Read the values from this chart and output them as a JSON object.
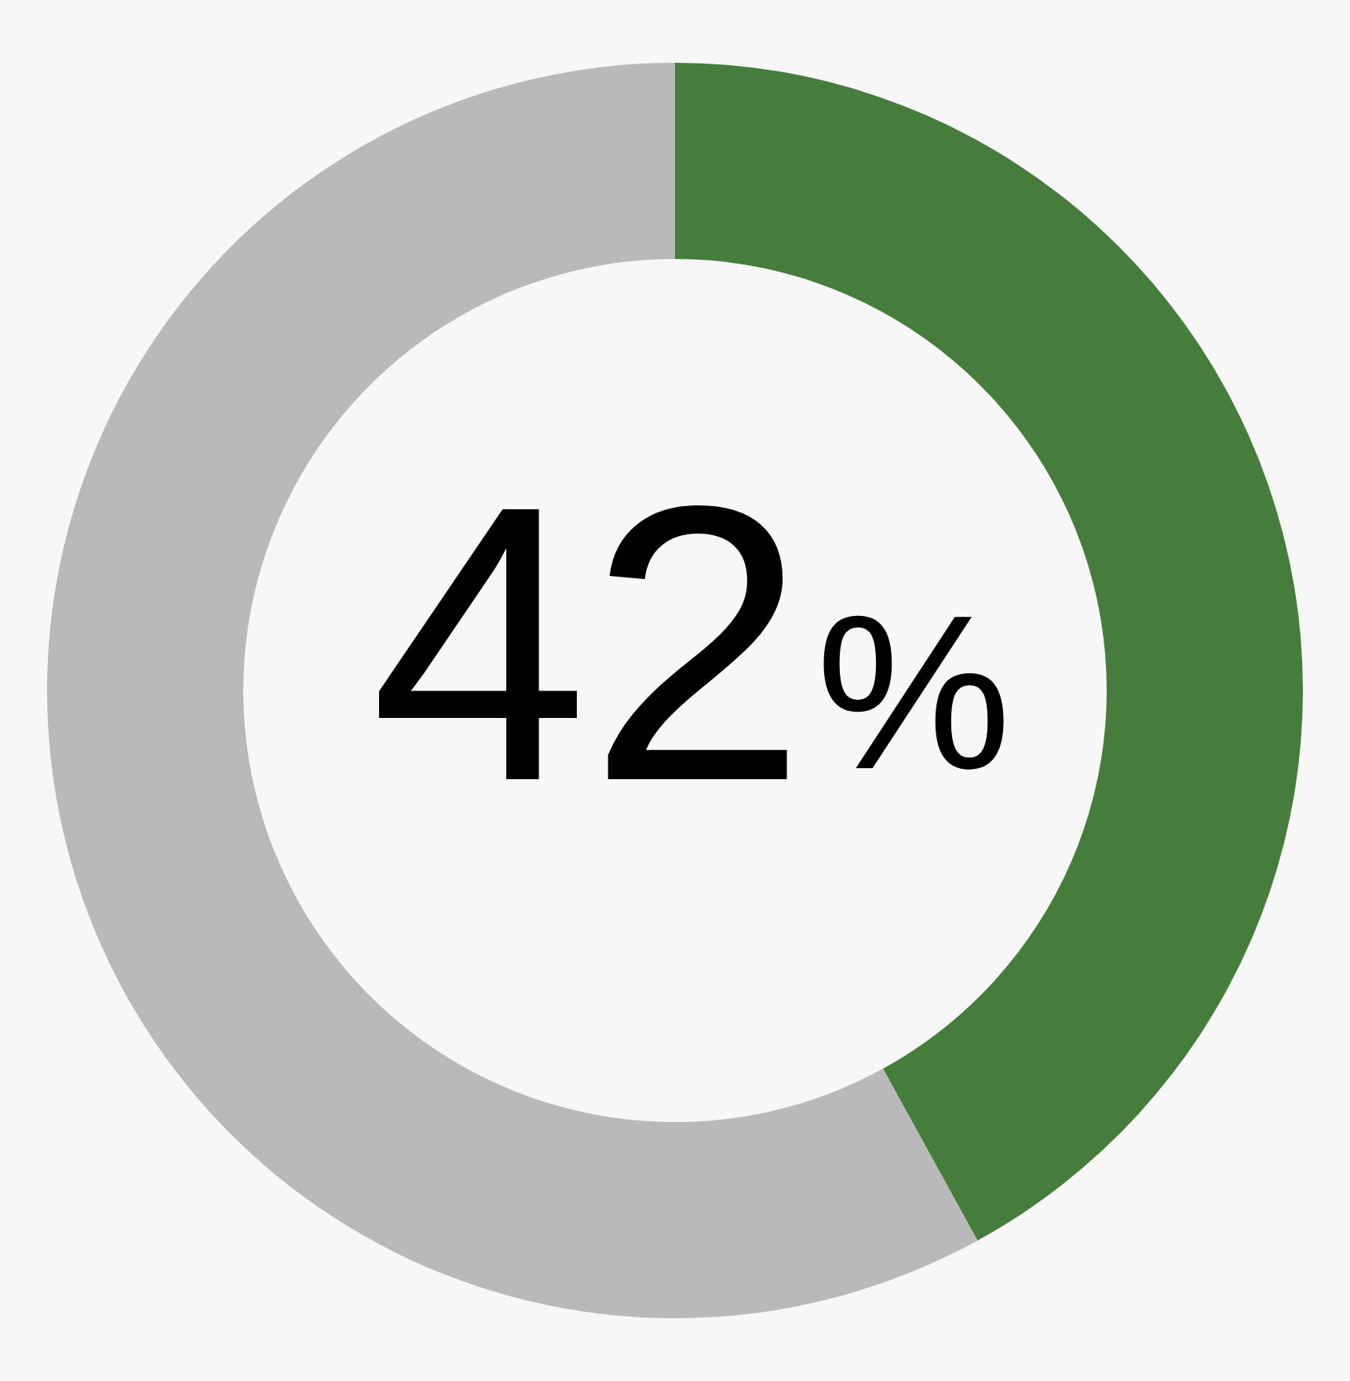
{
  "chart_data": {
    "type": "donut",
    "categories": [
      null,
      null
    ],
    "values": [
      42,
      58
    ],
    "colors": [
      "#467c3c",
      "#b9b9b9"
    ],
    "value_labels": [
      "42%",
      null
    ]
  }
}
